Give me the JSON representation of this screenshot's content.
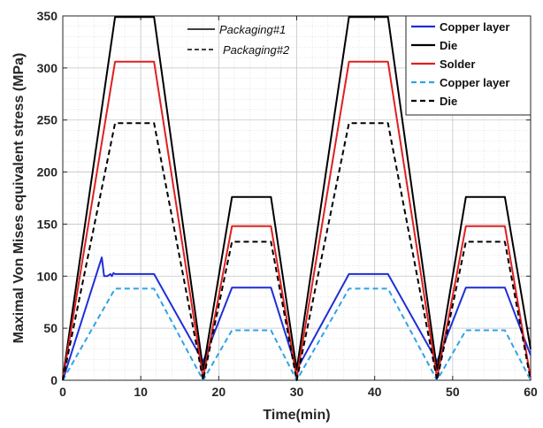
{
  "chart_data": {
    "type": "line",
    "title": "",
    "xlabel": "Time(min)",
    "ylabel": "Maximal Von Mises equivalent stress (MPa)",
    "xlim": [
      0,
      60
    ],
    "ylim": [
      0,
      350
    ],
    "xticks": [
      0,
      10,
      20,
      30,
      40,
      50,
      60
    ],
    "yticks": [
      0,
      50,
      100,
      150,
      200,
      250,
      300,
      350
    ],
    "grid": true,
    "minor_grid": true,
    "legend_position": "top-right",
    "annotations": [
      {
        "label": "Packaging#1",
        "line_style": "solid",
        "color": "#000000"
      },
      {
        "label": "Packaging#2",
        "line_style": "dashed",
        "color": "#000000"
      }
    ],
    "series": [
      {
        "name": "Copper layer",
        "group": "Packaging#1",
        "color": "#1f2fd6",
        "style": "solid",
        "x": [
          0,
          5,
          5.3,
          5.7,
          6.1,
          6.3,
          6.5,
          6.7,
          11.7,
          18,
          21.7,
          26.7,
          30,
          36.7,
          41.7,
          48,
          51.7,
          56.7,
          60
        ],
        "y": [
          0,
          118,
          100,
          100,
          102,
          100,
          103,
          102,
          102,
          18,
          89,
          89,
          10,
          102,
          102,
          18,
          89,
          89,
          24
        ]
      },
      {
        "name": "Die",
        "group": "Packaging#1",
        "color": "#000000",
        "style": "solid",
        "x": [
          0,
          6.7,
          11.7,
          18,
          21.7,
          26.7,
          30,
          36.7,
          41.7,
          48,
          51.7,
          56.7,
          60
        ],
        "y": [
          2,
          349,
          349,
          10,
          176,
          176,
          10,
          349,
          349,
          10,
          176,
          176,
          30
        ]
      },
      {
        "name": "Solder",
        "group": "Packaging#1",
        "color": "#e02020",
        "style": "solid",
        "x": [
          0,
          6.7,
          11.7,
          18,
          21.7,
          26.7,
          30,
          36.7,
          41.7,
          48,
          51.7,
          56.7,
          60
        ],
        "y": [
          0,
          306,
          306,
          2,
          148,
          148,
          2,
          306,
          306,
          2,
          148,
          148,
          2
        ]
      },
      {
        "name": "Copper layer",
        "group": "Packaging#2",
        "color": "#2fa3e6",
        "style": "dashed",
        "x": [
          0,
          6.7,
          11.7,
          18,
          21.7,
          26.7,
          30,
          36.7,
          41.7,
          48,
          51.7,
          56.7,
          60
        ],
        "y": [
          0,
          88,
          88,
          0,
          48,
          48,
          0,
          88,
          88,
          0,
          48,
          48,
          0
        ]
      },
      {
        "name": "Die",
        "group": "Packaging#2",
        "color": "#000000",
        "style": "dashed",
        "x": [
          0,
          6.7,
          11.7,
          18,
          21.7,
          26.7,
          30,
          36.7,
          41.7,
          48,
          51.7,
          56.7,
          60
        ],
        "y": [
          0,
          247,
          247,
          0,
          133,
          133,
          0,
          247,
          247,
          0,
          133,
          133,
          0
        ]
      }
    ]
  }
}
